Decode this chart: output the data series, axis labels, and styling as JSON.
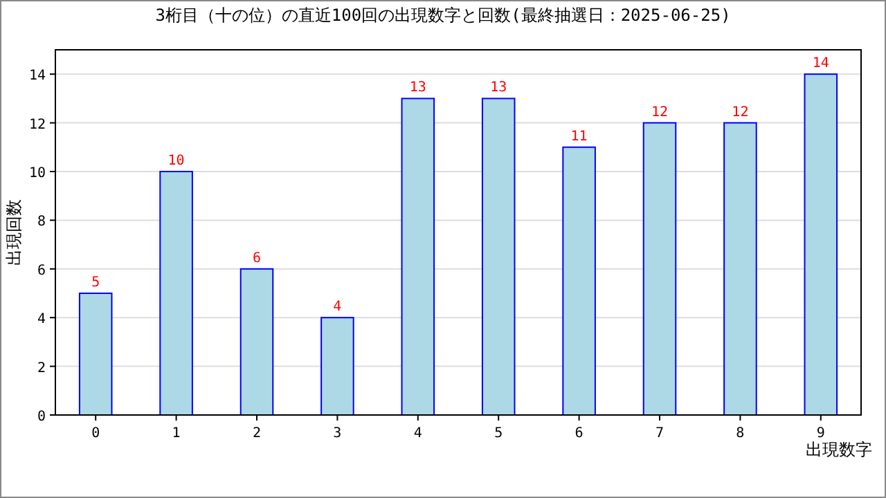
{
  "chart_data": {
    "type": "bar",
    "title": "3桁目（十の位）の直近100回の出現数字と回数(最終抽選日：2025-06-25)",
    "xlabel": "出現数字",
    "ylabel": "出現回数",
    "categories": [
      "0",
      "1",
      "2",
      "3",
      "4",
      "5",
      "6",
      "7",
      "8",
      "9"
    ],
    "values": [
      5,
      10,
      6,
      4,
      13,
      13,
      11,
      12,
      12,
      14
    ],
    "color": "#add8e6",
    "ylim": [
      0,
      15
    ],
    "yticks": [
      0,
      2,
      4,
      6,
      8,
      10,
      12,
      14
    ],
    "grid": "y",
    "data_labels": true
  }
}
